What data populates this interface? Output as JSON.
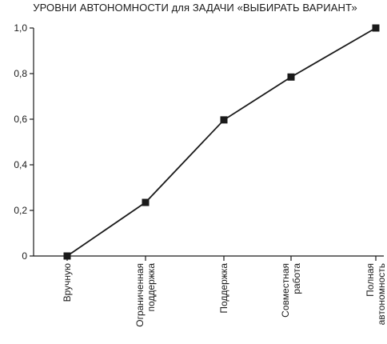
{
  "chart_data": {
    "type": "line",
    "title": "УРОВНИ АВТОНОМНОСТИ для ЗАДАЧИ «ВЫБИРАТЬ ВАРИАНТ»",
    "xlabel": "",
    "ylabel": "",
    "categories": [
      [
        "Вручную"
      ],
      [
        "Ограниченная",
        "поддержка"
      ],
      [
        "Поддержка"
      ],
      [
        "Совместная",
        "работа"
      ],
      [
        "Полная",
        "автономность"
      ]
    ],
    "values": [
      0,
      0.235,
      0.597,
      0.785,
      1.0
    ],
    "ylim": [
      0,
      1.0
    ],
    "yticks": [
      "0",
      "0,2",
      "0,4",
      "0,6",
      "0,8",
      "1,0"
    ],
    "grid": false,
    "marker": "square",
    "colors": {
      "line": "#1a1a1a",
      "marker": "#1a1a1a",
      "axis": "#1a1a1a"
    }
  }
}
